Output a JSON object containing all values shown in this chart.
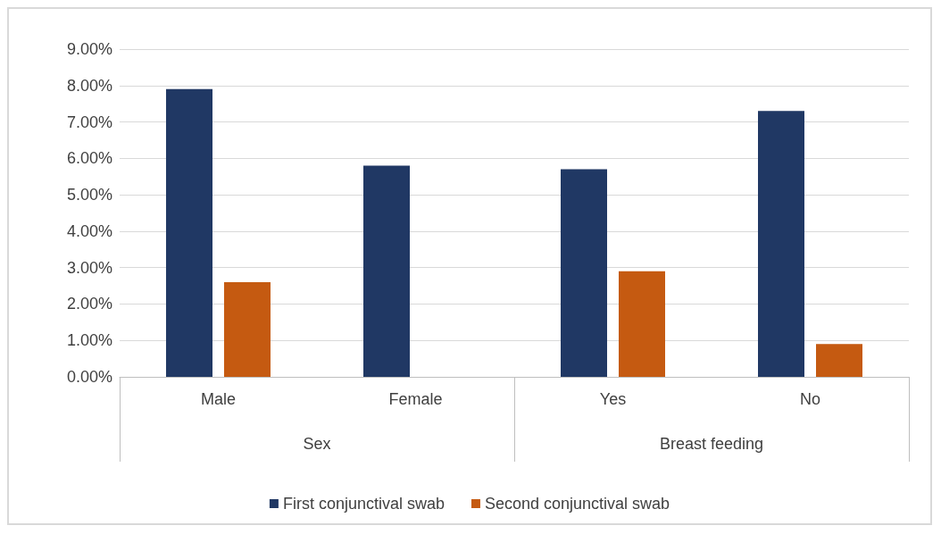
{
  "chart_data": {
    "type": "bar",
    "categories": [
      "Male",
      "Female",
      "Yes",
      "No"
    ],
    "annotations": [
      "Sex",
      "Breast feeding"
    ],
    "series": [
      {
        "name": "First conjunctival swab",
        "color": "#203864",
        "values": [
          7.9,
          5.8,
          5.7,
          7.3
        ]
      },
      {
        "name": "Second conjunctival swab",
        "color": "#c55a11",
        "values": [
          2.6,
          0,
          2.9,
          0.9
        ]
      }
    ],
    "ylim": [
      0,
      9
    ],
    "yticks": [
      {
        "value": 0,
        "label": "0.00%"
      },
      {
        "value": 1,
        "label": "1.00%"
      },
      {
        "value": 2,
        "label": "2.00%"
      },
      {
        "value": 3,
        "label": "3.00%"
      },
      {
        "value": 4,
        "label": "4.00%"
      },
      {
        "value": 5,
        "label": "5.00%"
      },
      {
        "value": 6,
        "label": "6.00%"
      },
      {
        "value": 7,
        "label": "7.00%"
      },
      {
        "value": 8,
        "label": "8.00%"
      },
      {
        "value": 9,
        "label": "9.00%"
      }
    ],
    "grid": "y",
    "legend": "bottom"
  }
}
